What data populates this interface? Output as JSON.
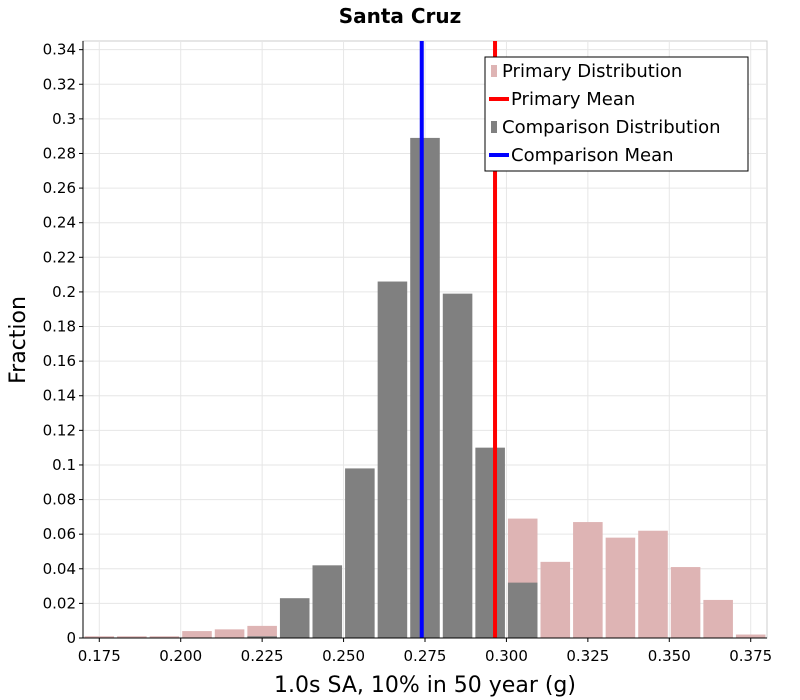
{
  "chart_data": {
    "type": "bar",
    "title": "Santa Cruz",
    "xlabel": "1.0s SA, 10% in 50 year (g)",
    "ylabel": "Fraction",
    "xlim": [
      0.17,
      0.38
    ],
    "ylim": [
      0,
      0.345
    ],
    "bin_width": 0.01,
    "grid": true,
    "legend_position": "top-right",
    "x_ticks": [
      "0.175",
      "0.200",
      "0.225",
      "0.250",
      "0.275",
      "0.300",
      "0.325",
      "0.350",
      "0.375"
    ],
    "y_ticks": [
      "0",
      "0.02",
      "0.04",
      "0.06",
      "0.08",
      "0.1",
      "0.12",
      "0.14",
      "0.16",
      "0.18",
      "0.2",
      "0.22",
      "0.24",
      "0.26",
      "0.28",
      "0.3",
      "0.32",
      "0.34"
    ],
    "series": [
      {
        "name": "Primary Distribution",
        "kind": "histogram",
        "color": "#deb4b4",
        "bin_centers": [
          0.175,
          0.185,
          0.195,
          0.205,
          0.215,
          0.225,
          0.235,
          0.245,
          0.255,
          0.265,
          0.275,
          0.285,
          0.295,
          0.305,
          0.315,
          0.325,
          0.335,
          0.345,
          0.355,
          0.365,
          0.375
        ],
        "values": [
          0.001,
          0.001,
          0.001,
          0.004,
          0.005,
          0.007,
          0.0,
          0.0,
          0.0,
          0.0,
          0.0,
          0.0,
          0.0,
          0.069,
          0.044,
          0.067,
          0.058,
          0.062,
          0.041,
          0.022,
          0.002
        ]
      },
      {
        "name": "Primary Mean",
        "kind": "vline",
        "color": "#ff0000",
        "x": 0.2965
      },
      {
        "name": "Comparison Distribution",
        "kind": "histogram",
        "color": "#808080",
        "bin_centers": [
          0.225,
          0.235,
          0.245,
          0.255,
          0.265,
          0.275,
          0.285,
          0.295,
          0.305
        ],
        "values": [
          0.001,
          0.023,
          0.042,
          0.098,
          0.206,
          0.289,
          0.199,
          0.11,
          0.032
        ]
      },
      {
        "name": "Comparison Mean",
        "kind": "vline",
        "color": "#0000ff",
        "x": 0.274
      }
    ]
  }
}
